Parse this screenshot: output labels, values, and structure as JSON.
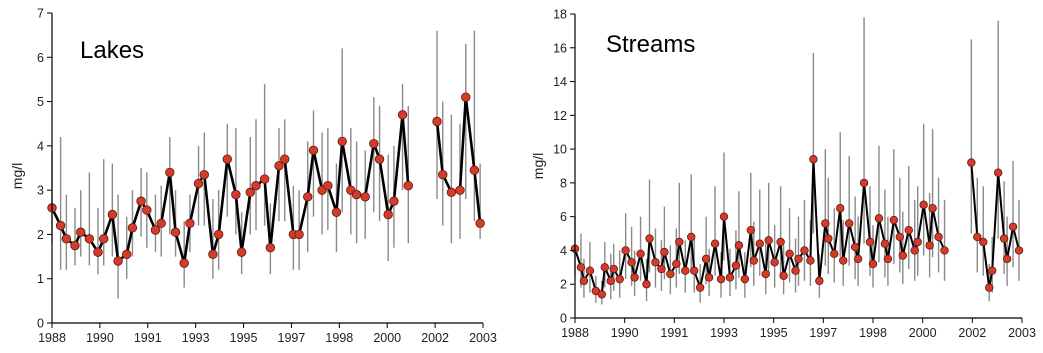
{
  "chart_data": [
    {
      "type": "line",
      "title": "Lakes",
      "xlabel": "",
      "ylabel": "mg/l",
      "xlim": [
        1988,
        2003
      ],
      "ylim": [
        0,
        7
      ],
      "yticks": [
        0,
        1,
        2,
        3,
        4,
        5,
        6,
        7
      ],
      "xtick_labels": [
        "1988",
        "1990",
        "1991",
        "1993",
        "1995",
        "1997",
        "1998",
        "2000",
        "2002",
        "2003"
      ],
      "grid": false,
      "marker_color": "#d63a2a",
      "line_color": "#000000",
      "whisker_color": "#8a8a8a",
      "series": [
        {
          "x": [
            1988.0,
            1988.3,
            1988.5,
            1988.8,
            1989.0,
            1989.3,
            1989.6,
            1989.8,
            1990.1,
            1990.3,
            1990.6,
            1990.8,
            1991.1,
            1991.3,
            1991.6,
            1991.8,
            1992.1,
            1992.3,
            1992.6,
            1992.8,
            1993.1,
            1993.3,
            1993.6,
            1993.8,
            1994.1,
            1994.4,
            1994.6,
            1994.9,
            1995.1,
            1995.4,
            1995.6,
            1995.9,
            1996.1,
            1996.4,
            1996.6,
            1996.9,
            1997.1,
            1997.4,
            1997.6,
            1997.9,
            1998.1,
            1998.4,
            1998.6,
            1998.9,
            1999.2,
            1999.4,
            1999.7,
            1999.9,
            2000.2,
            2000.4,
            2001.4,
            2001.6,
            2001.9,
            2002.2,
            2002.4,
            2002.7,
            2002.9
          ],
          "y": [
            2.6,
            2.2,
            1.9,
            1.75,
            2.05,
            1.9,
            1.6,
            1.9,
            2.45,
            1.4,
            1.55,
            2.15,
            2.75,
            2.55,
            2.1,
            2.25,
            3.4,
            2.05,
            1.35,
            2.25,
            3.15,
            3.35,
            1.55,
            2.0,
            3.7,
            2.9,
            1.6,
            2.95,
            3.1,
            3.25,
            1.7,
            3.55,
            3.7,
            2.0,
            2.0,
            2.85,
            3.9,
            3.0,
            3.1,
            2.5,
            4.1,
            3.0,
            2.9,
            2.85,
            4.05,
            3.7,
            2.45,
            2.75,
            4.7,
            3.1,
            4.55,
            3.35,
            2.95,
            3.0,
            5.1,
            3.45,
            2.25
          ],
          "lo": [
            1.8,
            1.2,
            1.2,
            1.3,
            1.5,
            1.3,
            1.1,
            1.3,
            1.5,
            0.55,
            1.0,
            1.5,
            1.95,
            1.7,
            1.6,
            1.5,
            2.0,
            1.5,
            0.8,
            1.6,
            2.2,
            2.2,
            1.0,
            1.2,
            2.4,
            2.0,
            1.1,
            2.0,
            2.1,
            2.2,
            1.1,
            2.3,
            2.3,
            1.2,
            1.2,
            1.6,
            2.4,
            2.0,
            2.1,
            1.6,
            2.5,
            2.0,
            1.8,
            1.9,
            2.5,
            2.3,
            1.4,
            1.7,
            3.0,
            1.8,
            2.8,
            2.2,
            1.8,
            1.9,
            2.8,
            2.3,
            1.9
          ],
          "hi": [
            3.9,
            4.2,
            2.9,
            2.6,
            3.0,
            3.4,
            2.6,
            3.7,
            3.6,
            2.9,
            2.4,
            3.0,
            3.5,
            3.4,
            2.9,
            3.1,
            4.2,
            3.0,
            2.3,
            2.9,
            4.0,
            4.3,
            2.8,
            3.0,
            4.5,
            4.4,
            2.5,
            4.2,
            4.6,
            5.4,
            2.7,
            4.4,
            4.6,
            3.1,
            3.0,
            4.1,
            4.8,
            4.3,
            4.4,
            3.6,
            6.2,
            4.4,
            4.1,
            3.9,
            5.1,
            4.9,
            3.8,
            4.0,
            5.4,
            4.9,
            6.6,
            5.0,
            4.7,
            4.5,
            6.3,
            6.6,
            3.6
          ]
        }
      ],
      "gap_after_x": 2000.4
    },
    {
      "type": "line",
      "title": "Streams",
      "xlabel": "",
      "ylabel": "mg/l",
      "xlim": [
        1988,
        2003
      ],
      "ylim": [
        0,
        18
      ],
      "yticks": [
        0,
        2,
        4,
        6,
        8,
        10,
        12,
        14,
        16,
        18
      ],
      "xtick_labels": [
        "1988",
        "1990",
        "1991",
        "1993",
        "1995",
        "1997",
        "1998",
        "2000",
        "2002",
        "2003"
      ],
      "grid": false,
      "marker_color": "#d63a2a",
      "line_color": "#000000",
      "whisker_color": "#8a8a8a",
      "series": [
        {
          "x": [
            1988.0,
            1988.2,
            1988.3,
            1988.5,
            1988.7,
            1988.9,
            1989.0,
            1989.2,
            1989.3,
            1989.5,
            1989.7,
            1989.9,
            1990.0,
            1990.2,
            1990.4,
            1990.5,
            1990.7,
            1990.9,
            1991.0,
            1991.2,
            1991.4,
            1991.5,
            1991.7,
            1991.9,
            1992.0,
            1992.2,
            1992.4,
            1992.5,
            1992.7,
            1992.9,
            1993.0,
            1993.2,
            1993.4,
            1993.5,
            1993.7,
            1993.9,
            1994.0,
            1994.2,
            1994.4,
            1994.5,
            1994.7,
            1994.9,
            1995.0,
            1995.2,
            1995.4,
            1995.5,
            1995.7,
            1995.9,
            1996.0,
            1996.2,
            1996.4,
            1996.5,
            1996.7,
            1996.9,
            1997.0,
            1997.2,
            1997.4,
            1997.5,
            1997.7,
            1997.9,
            1998.0,
            1998.2,
            1998.4,
            1998.5,
            1998.7,
            1998.9,
            1999.0,
            1999.2,
            1999.4,
            1999.5,
            1999.7,
            1999.9,
            2000.0,
            2000.2,
            2000.4,
            2001.3,
            2001.5,
            2001.7,
            2001.9,
            2002.0,
            2002.2,
            2002.4,
            2002.5,
            2002.7,
            2002.9
          ],
          "y": [
            4.1,
            3.0,
            2.2,
            2.8,
            1.6,
            1.4,
            3.0,
            2.2,
            2.9,
            2.3,
            4.0,
            3.3,
            2.4,
            3.8,
            2.0,
            4.7,
            3.3,
            2.9,
            3.9,
            2.6,
            3.2,
            4.5,
            2.8,
            4.8,
            2.8,
            1.8,
            3.5,
            2.4,
            4.4,
            2.3,
            6.0,
            2.4,
            3.1,
            4.3,
            2.3,
            5.2,
            3.4,
            4.4,
            2.6,
            4.6,
            3.3,
            4.5,
            2.5,
            3.8,
            2.8,
            3.5,
            4.0,
            3.4,
            9.4,
            2.2,
            5.6,
            4.7,
            3.8,
            6.5,
            3.4,
            5.6,
            4.2,
            3.5,
            8.0,
            4.5,
            3.2,
            5.9,
            4.4,
            3.5,
            5.8,
            4.8,
            3.7,
            5.2,
            4.0,
            4.5,
            6.7,
            4.3,
            6.5,
            4.8,
            4.0,
            9.2,
            4.8,
            4.5,
            1.8,
            2.8,
            8.6,
            4.7,
            3.5,
            5.4,
            4.0
          ],
          "lo": [
            2.5,
            1.8,
            1.2,
            1.5,
            0.9,
            0.8,
            1.8,
            1.1,
            1.6,
            1.2,
            2.3,
            1.9,
            1.3,
            2.2,
            1.0,
            2.7,
            1.8,
            1.6,
            2.3,
            1.4,
            1.8,
            2.6,
            1.5,
            2.8,
            1.5,
            0.9,
            2.0,
            1.3,
            2.5,
            1.2,
            3.4,
            1.3,
            1.7,
            2.4,
            1.2,
            3.0,
            1.9,
            2.5,
            1.4,
            2.6,
            1.8,
            2.5,
            1.4,
            2.1,
            1.5,
            1.9,
            2.2,
            1.9,
            5.0,
            1.2,
            3.1,
            2.6,
            2.1,
            3.6,
            1.9,
            3.1,
            2.3,
            1.9,
            4.4,
            2.5,
            1.8,
            3.3,
            2.4,
            1.9,
            3.2,
            2.7,
            2.0,
            2.9,
            2.2,
            2.5,
            3.7,
            2.4,
            3.6,
            2.7,
            2.2,
            5.0,
            2.7,
            2.5,
            1.0,
            1.5,
            4.7,
            2.6,
            1.9,
            3.0,
            2.2
          ],
          "hi": [
            6.0,
            5.0,
            3.5,
            4.5,
            2.5,
            2.2,
            4.5,
            3.8,
            4.4,
            4.0,
            6.2,
            5.4,
            4.0,
            6.0,
            3.5,
            8.2,
            5.3,
            4.6,
            6.6,
            4.3,
            5.3,
            8.0,
            4.6,
            8.5,
            4.8,
            3.2,
            6.0,
            4.1,
            7.8,
            3.9,
            9.8,
            4.1,
            5.2,
            7.5,
            3.9,
            8.6,
            5.7,
            7.6,
            4.4,
            8.0,
            5.5,
            7.8,
            4.3,
            6.5,
            4.7,
            6.0,
            7.0,
            5.8,
            15.7,
            3.8,
            10.0,
            8.3,
            6.5,
            11.0,
            5.8,
            9.6,
            7.2,
            6.0,
            17.8,
            7.8,
            5.5,
            10.2,
            7.6,
            6.0,
            10.0,
            8.3,
            6.3,
            9.0,
            7.0,
            7.8,
            11.5,
            7.4,
            11.2,
            8.3,
            7.0,
            16.5,
            8.3,
            7.8,
            3.2,
            4.8,
            17.6,
            8.1,
            6.0,
            9.3,
            7.0
          ]
        }
      ],
      "gap_after_x": 2000.4
    }
  ]
}
